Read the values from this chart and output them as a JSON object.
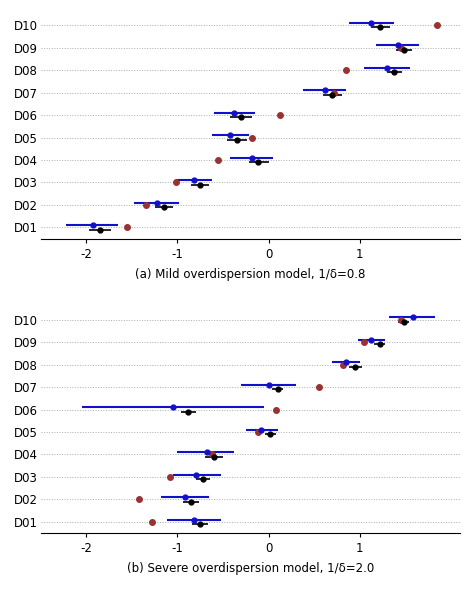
{
  "panel_a": {
    "title": "(a) Mild overdispersion model, 1/δ=0.8",
    "categories": [
      "D10",
      "D09",
      "D08",
      "D07",
      "D06",
      "D05",
      "D04",
      "D03",
      "D02",
      "D01"
    ],
    "black_centers": [
      1.22,
      1.48,
      1.38,
      0.7,
      -0.3,
      -0.35,
      -0.12,
      -0.75,
      -1.15,
      -1.85
    ],
    "black_lo": [
      1.12,
      1.4,
      1.3,
      0.6,
      -0.42,
      -0.46,
      -0.22,
      -0.85,
      -1.25,
      -1.97
    ],
    "black_hi": [
      1.33,
      1.57,
      1.46,
      0.8,
      -0.18,
      -0.24,
      0.0,
      -0.65,
      -1.05,
      -1.73
    ],
    "blue_centers": [
      1.12,
      1.42,
      1.3,
      0.62,
      -0.38,
      -0.42,
      -0.18,
      -0.82,
      -1.22,
      -1.93
    ],
    "blue_lo": [
      0.88,
      1.18,
      1.05,
      0.38,
      -0.6,
      -0.62,
      -0.42,
      -1.02,
      -1.48,
      -2.22
    ],
    "blue_hi": [
      1.38,
      1.65,
      1.55,
      0.85,
      -0.15,
      -0.22,
      0.05,
      -0.62,
      -0.98,
      -1.65
    ],
    "red_dots": [
      1.85,
      1.45,
      0.85,
      0.72,
      0.12,
      -0.18,
      -0.55,
      -1.02,
      -1.35,
      -1.55
    ]
  },
  "panel_b": {
    "title": "(b) Severe overdispersion model, 1/δ=2.0",
    "categories": [
      "D10",
      "D09",
      "D08",
      "D07",
      "D06",
      "D05",
      "D04",
      "D03",
      "D02",
      "D01"
    ],
    "black_centers": [
      1.48,
      1.22,
      0.95,
      0.1,
      -0.88,
      0.02,
      -0.6,
      -0.72,
      -0.85,
      -0.75
    ],
    "black_lo": [
      1.42,
      1.16,
      0.88,
      0.04,
      -0.96,
      -0.04,
      -0.7,
      -0.8,
      -0.94,
      -0.84
    ],
    "black_hi": [
      1.54,
      1.28,
      1.02,
      0.16,
      -0.8,
      0.08,
      -0.5,
      -0.64,
      -0.76,
      -0.66
    ],
    "blue_centers": [
      1.58,
      1.12,
      0.85,
      0.0,
      -1.05,
      -0.08,
      -0.68,
      -0.8,
      -0.92,
      -0.82
    ],
    "blue_lo": [
      1.32,
      0.98,
      0.7,
      -0.3,
      -2.05,
      -0.25,
      -1.0,
      -1.05,
      -1.18,
      -1.12
    ],
    "blue_hi": [
      1.82,
      1.28,
      1.0,
      0.3,
      -0.05,
      0.1,
      -0.38,
      -0.52,
      -0.65,
      -0.52
    ],
    "red_dots": [
      1.45,
      1.05,
      0.82,
      0.55,
      0.08,
      -0.12,
      -0.62,
      -1.08,
      -1.42,
      -1.28
    ]
  },
  "xlim": [
    -2.5,
    2.1
  ],
  "xticks": [
    -2,
    -1,
    0,
    1
  ],
  "black_color": "#000000",
  "blue_color": "#1111cc",
  "red_color": "#993333",
  "bg_color": "#ffffff",
  "linewidth_black": 1.2,
  "linewidth_blue": 1.5
}
